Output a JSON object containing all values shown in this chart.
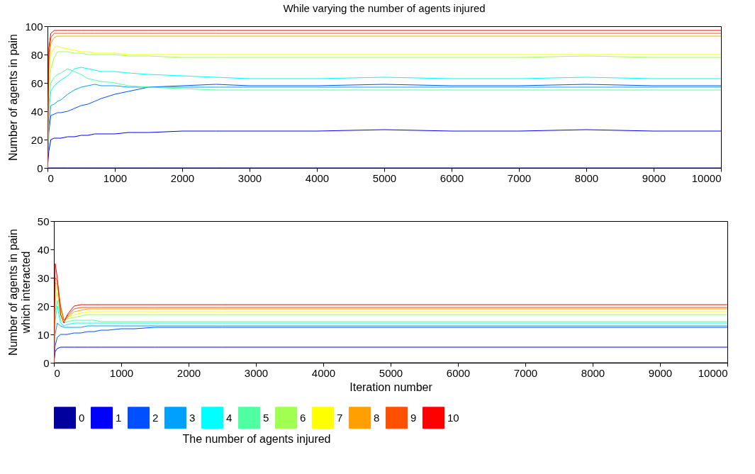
{
  "chart_data": [
    {
      "type": "line",
      "title": "While varying the number of agents injured",
      "ylabel": "Number of agents in pain",
      "x": [
        0,
        20,
        50,
        100,
        150,
        200,
        300,
        400,
        500,
        600,
        700,
        800,
        1000,
        1200,
        1500,
        2000,
        2500,
        3000,
        4000,
        5000,
        6000,
        7000,
        8000,
        9000,
        10000
      ],
      "xlim": [
        0,
        10000
      ],
      "xticks": [
        0,
        1000,
        2000,
        3000,
        4000,
        5000,
        6000,
        7000,
        8000,
        9000,
        10000
      ],
      "ylim": [
        0,
        100
      ],
      "yticks": [
        0,
        20,
        40,
        60,
        80,
        100
      ],
      "grid": false,
      "legend": false,
      "series": [
        {
          "color": "#00009f",
          "values": [
            0,
            0,
            0,
            0,
            0,
            0,
            0,
            0,
            0,
            0,
            0,
            0,
            0,
            0,
            0,
            0,
            0,
            0,
            0,
            0,
            0,
            0,
            0,
            0,
            0
          ]
        },
        {
          "color": "#0000ff",
          "values": [
            0,
            12,
            20,
            21,
            21,
            21,
            22,
            22,
            23,
            23,
            24,
            24,
            24,
            25,
            25,
            26,
            26,
            26,
            26,
            27,
            26,
            26,
            27,
            26,
            26
          ]
        },
        {
          "color": "#0050ff",
          "values": [
            0,
            25,
            37,
            38,
            39,
            39,
            40,
            42,
            44,
            45,
            47,
            49,
            52,
            54,
            57,
            58,
            59,
            58,
            58,
            59,
            58,
            58,
            59,
            58,
            58
          ]
        },
        {
          "color": "#00a0ff",
          "values": [
            0,
            30,
            44,
            45,
            47,
            48,
            52,
            55,
            57,
            58,
            59,
            58,
            58,
            57,
            57,
            57,
            57,
            57,
            57,
            57,
            57,
            57,
            57,
            57,
            57
          ]
        },
        {
          "color": "#00ffff",
          "values": [
            0,
            40,
            54,
            58,
            60,
            62,
            65,
            70,
            71,
            70,
            69,
            68,
            68,
            67,
            66,
            65,
            64,
            63,
            63,
            64,
            63,
            63,
            64,
            63,
            63
          ]
        },
        {
          "color": "#50ffa0",
          "values": [
            0,
            45,
            60,
            64,
            66,
            67,
            70,
            68,
            66,
            63,
            62,
            61,
            60,
            58,
            57,
            56,
            55,
            55,
            55,
            55,
            55,
            55,
            55,
            55,
            55
          ]
        },
        {
          "color": "#a0ff50",
          "values": [
            0,
            55,
            70,
            78,
            82,
            82,
            82,
            81,
            81,
            80,
            80,
            80,
            80,
            79,
            79,
            78,
            78,
            78,
            78,
            78,
            78,
            78,
            79,
            78,
            78
          ]
        },
        {
          "color": "#ffff00",
          "values": [
            0,
            65,
            80,
            85,
            86,
            85,
            84,
            83,
            82,
            82,
            81,
            81,
            81,
            80,
            80,
            80,
            80,
            80,
            80,
            80,
            80,
            80,
            80,
            80,
            80
          ]
        },
        {
          "color": "#ffa000",
          "values": [
            0,
            75,
            88,
            92,
            93,
            93,
            93,
            93,
            93,
            93,
            93,
            93,
            93,
            93,
            93,
            93,
            93,
            93,
            93,
            93,
            93,
            93,
            93,
            93,
            93
          ]
        },
        {
          "color": "#ff5000",
          "values": [
            0,
            80,
            92,
            95,
            95,
            95,
            95,
            95,
            95,
            95,
            95,
            95,
            95,
            95,
            95,
            95,
            95,
            95,
            95,
            95,
            95,
            95,
            95,
            95,
            95
          ]
        },
        {
          "color": "#ff0000",
          "values": [
            0,
            85,
            95,
            97,
            97,
            97,
            97,
            97,
            97,
            97,
            97,
            97,
            97,
            97,
            97,
            97,
            97,
            97,
            97,
            97,
            97,
            97,
            97,
            97,
            97
          ]
        }
      ]
    },
    {
      "type": "line",
      "xlabel": "Iteration number",
      "ylabel": "Number of agents in pain\nwhich interacted",
      "legend_title": "The number of agents injured",
      "x": [
        0,
        20,
        50,
        100,
        150,
        200,
        300,
        400,
        500,
        600,
        700,
        800,
        1000,
        1200,
        1500,
        2000,
        2500,
        3000,
        4000,
        5000,
        6000,
        7000,
        8000,
        9000,
        10000
      ],
      "xlim": [
        0,
        10000
      ],
      "xticks": [
        0,
        1000,
        2000,
        3000,
        4000,
        5000,
        6000,
        7000,
        8000,
        9000,
        10000
      ],
      "ylim": [
        0,
        50
      ],
      "yticks": [
        0,
        10,
        20,
        30,
        40,
        50
      ],
      "grid": false,
      "legend": "bottom",
      "series": [
        {
          "name": "0",
          "color": "#00009f",
          "values": [
            0,
            0,
            0,
            0,
            0,
            0,
            0,
            0,
            0,
            0,
            0,
            0,
            0,
            0,
            0,
            0,
            0,
            0,
            0,
            0,
            0,
            0,
            0,
            0,
            0
          ]
        },
        {
          "name": "1",
          "color": "#0000ff",
          "values": [
            0,
            4,
            5,
            5.5,
            5.5,
            5.5,
            5.5,
            5.5,
            5.5,
            5.5,
            5.5,
            5.5,
            5.5,
            5.5,
            5.5,
            5.5,
            5.5,
            5.5,
            5.5,
            5.5,
            5.5,
            5.5,
            5.5,
            5.5,
            5.5
          ]
        },
        {
          "name": "2",
          "color": "#0050ff",
          "values": [
            0,
            6,
            9,
            10,
            10,
            10,
            10.5,
            10.5,
            11,
            11,
            11.5,
            11.5,
            12,
            12,
            12.5,
            12.5,
            12.5,
            12.5,
            12.5,
            12.5,
            12.5,
            12.5,
            12.5,
            12.5,
            12.5
          ]
        },
        {
          "name": "3",
          "color": "#00a0ff",
          "values": [
            0,
            10,
            14,
            13,
            12.5,
            12.5,
            12.5,
            12.5,
            13,
            13,
            13,
            13,
            13,
            13,
            13,
            13,
            13,
            13,
            13,
            13,
            13,
            13,
            13,
            13,
            13
          ]
        },
        {
          "name": "4",
          "color": "#00ffff",
          "values": [
            0,
            15,
            20,
            14,
            13,
            13.5,
            14,
            14,
            14,
            14,
            14,
            14,
            14,
            14,
            14,
            14,
            14,
            14,
            14,
            14,
            14,
            14,
            14,
            14,
            14
          ]
        },
        {
          "name": "5",
          "color": "#50ffa0",
          "values": [
            0,
            18,
            22,
            15,
            14,
            14.5,
            15,
            15,
            15,
            15,
            14.5,
            14.5,
            14.5,
            14.5,
            14.5,
            14.5,
            14.5,
            14.5,
            14.5,
            14.5,
            14.5,
            14.5,
            14.5,
            14.5,
            14.5
          ]
        },
        {
          "name": "6",
          "color": "#a0ff50",
          "values": [
            0,
            22,
            25,
            17,
            15,
            15.5,
            16,
            16.5,
            17,
            17,
            17,
            17,
            17,
            17,
            17,
            17,
            17,
            17,
            17,
            17,
            17,
            17,
            17,
            17,
            17
          ]
        },
        {
          "name": "7",
          "color": "#ffff00",
          "values": [
            0,
            26,
            27,
            18,
            15,
            16,
            17,
            17.5,
            18,
            18,
            18,
            18,
            18,
            18,
            18,
            18,
            18,
            18,
            18,
            18,
            18,
            18,
            18,
            18,
            18
          ]
        },
        {
          "name": "8",
          "color": "#ffa000",
          "values": [
            0,
            28,
            28,
            19,
            15,
            16,
            18,
            18.5,
            19,
            19,
            19,
            19,
            19,
            19,
            19,
            19,
            19,
            19,
            19,
            19,
            19,
            19,
            19,
            19,
            19
          ]
        },
        {
          "name": "9",
          "color": "#ff5000",
          "values": [
            0,
            30,
            29,
            20,
            15,
            16.5,
            19,
            19.5,
            19.5,
            19.5,
            19.5,
            19.5,
            19.5,
            19.5,
            19.5,
            19.5,
            19.5,
            19.5,
            19.5,
            19.5,
            19.5,
            19.5,
            19.5,
            19.5,
            19.5
          ]
        },
        {
          "name": "10",
          "color": "#ff0000",
          "values": [
            0,
            35,
            30,
            17,
            14,
            17,
            20,
            20.5,
            20.5,
            20.5,
            20.5,
            20.5,
            20.5,
            20.5,
            20.5,
            20.5,
            20.5,
            20.5,
            20.5,
            20.5,
            20.5,
            20.5,
            20.5,
            20.5,
            20.5
          ]
        }
      ]
    }
  ]
}
